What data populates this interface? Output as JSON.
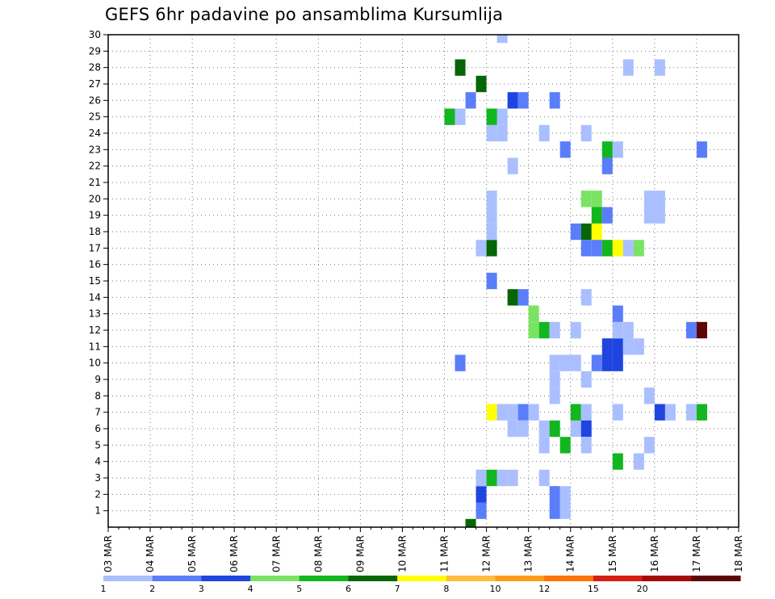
{
  "title": "GEFS 6hr padavine po ansamblima Kursumlija",
  "chart_data": {
    "type": "heatmap",
    "title": "GEFS 6hr padavine po ansamblima Kursumlija",
    "x_ticks": [
      "03 MAR",
      "04 MAR",
      "05 MAR",
      "06 MAR",
      "07 MAR",
      "08 MAR",
      "09 MAR",
      "10 MAR",
      "11 MAR",
      "12 MAR",
      "13 MAR",
      "14 MAR",
      "15 MAR",
      "16 MAR",
      "17 MAR",
      "18 MAR"
    ],
    "y_ticks": [
      "1",
      "2",
      "3",
      "4",
      "5",
      "6",
      "7",
      "8",
      "9",
      "10",
      "11",
      "12",
      "13",
      "14",
      "15",
      "16",
      "17",
      "18",
      "19",
      "20",
      "21",
      "22",
      "23",
      "24",
      "25",
      "26",
      "27",
      "28",
      "29",
      "30"
    ],
    "xlim": [
      "03 MAR 00Z",
      "18 MAR 00Z"
    ],
    "ylim": [
      0,
      30
    ],
    "x_step_hours": 6,
    "grid": true,
    "cells_format": "[x_step_index, ensemble_member, color_class]",
    "cells": [
      [
        34,
        0,
        6
      ],
      [
        35,
        1,
        2
      ],
      [
        35,
        2,
        3
      ],
      [
        35,
        3,
        1
      ],
      [
        35,
        17,
        1
      ],
      [
        36,
        17,
        6
      ],
      [
        36,
        18,
        1
      ],
      [
        36,
        19,
        1
      ],
      [
        36,
        7,
        7
      ],
      [
        37,
        7,
        1
      ],
      [
        38,
        7,
        1
      ],
      [
        39,
        7,
        2
      ],
      [
        40,
        7,
        1
      ],
      [
        38,
        6,
        1
      ],
      [
        39,
        6,
        1
      ],
      [
        35,
        3,
        1
      ],
      [
        36,
        3,
        5
      ],
      [
        37,
        3,
        1
      ],
      [
        38,
        3,
        1
      ],
      [
        41,
        3,
        1
      ],
      [
        41,
        5,
        1
      ],
      [
        41,
        6,
        1
      ],
      [
        42,
        6,
        5
      ],
      [
        42,
        2,
        2
      ],
      [
        43,
        2,
        1
      ],
      [
        42,
        1,
        2
      ],
      [
        43,
        1,
        1
      ],
      [
        33,
        10,
        2
      ],
      [
        36,
        15,
        2
      ],
      [
        38,
        14,
        6
      ],
      [
        39,
        14,
        2
      ],
      [
        40,
        12,
        4
      ],
      [
        40,
        13,
        4
      ],
      [
        41,
        12,
        5
      ],
      [
        42,
        12,
        1
      ],
      [
        42,
        8,
        1
      ],
      [
        42,
        9,
        1
      ],
      [
        42,
        10,
        1
      ],
      [
        43,
        5,
        5
      ],
      [
        44,
        6,
        1
      ],
      [
        44,
        7,
        5
      ],
      [
        45,
        7,
        1
      ],
      [
        45,
        6,
        3
      ],
      [
        45,
        5,
        1
      ],
      [
        44,
        10,
        1
      ],
      [
        45,
        9,
        1
      ],
      [
        46,
        10,
        2
      ],
      [
        47,
        10,
        3
      ],
      [
        48,
        10,
        3
      ],
      [
        47,
        11,
        3
      ],
      [
        48,
        11,
        3
      ],
      [
        48,
        12,
        1
      ],
      [
        49,
        12,
        1
      ],
      [
        48,
        13,
        2
      ],
      [
        49,
        11,
        1
      ],
      [
        50,
        11,
        1
      ],
      [
        45,
        14,
        1
      ],
      [
        44,
        18,
        2
      ],
      [
        45,
        18,
        6
      ],
      [
        46,
        18,
        7
      ],
      [
        46,
        19,
        5
      ],
      [
        47,
        19,
        2
      ],
      [
        45,
        17,
        2
      ],
      [
        46,
        17,
        2
      ],
      [
        47,
        17,
        5
      ],
      [
        48,
        17,
        7
      ],
      [
        49,
        17,
        1
      ],
      [
        50,
        17,
        4
      ],
      [
        46,
        20,
        4
      ],
      [
        45,
        20,
        4
      ],
      [
        47,
        22,
        2
      ],
      [
        47,
        23,
        5
      ],
      [
        48,
        23,
        1
      ],
      [
        43,
        23,
        2
      ],
      [
        45,
        24,
        1
      ],
      [
        44,
        12,
        1
      ],
      [
        43,
        10,
        1
      ],
      [
        48,
        4,
        5
      ],
      [
        50,
        4,
        1
      ],
      [
        51,
        5,
        1
      ],
      [
        48,
        7,
        1
      ],
      [
        52,
        7,
        3
      ],
      [
        53,
        7,
        1
      ],
      [
        55,
        7,
        1
      ],
      [
        56,
        7,
        5
      ],
      [
        51,
        8,
        1
      ],
      [
        51,
        20,
        1
      ],
      [
        52,
        20,
        1
      ],
      [
        51,
        19,
        1
      ],
      [
        52,
        19,
        1
      ],
      [
        55,
        12,
        2
      ],
      [
        56,
        12,
        13
      ],
      [
        56,
        23,
        2
      ],
      [
        41,
        24,
        1
      ],
      [
        36,
        24,
        1
      ],
      [
        37,
        24,
        1
      ],
      [
        37,
        25,
        1
      ],
      [
        36,
        25,
        5
      ],
      [
        33,
        25,
        1
      ],
      [
        32,
        25,
        5
      ],
      [
        34,
        26,
        2
      ],
      [
        38,
        26,
        3
      ],
      [
        39,
        26,
        2
      ],
      [
        42,
        26,
        2
      ],
      [
        35,
        27,
        6
      ],
      [
        33,
        28,
        6
      ],
      [
        37,
        30,
        1
      ],
      [
        49,
        28,
        1
      ],
      [
        52,
        28,
        1
      ],
      [
        38,
        22,
        1
      ],
      [
        36,
        20,
        1
      ]
    ],
    "colorbar": {
      "colors": [
        "#aabfff",
        "#5a7dfb",
        "#1f45e0",
        "#7be363",
        "#12b61f",
        "#066605",
        "#ffff00",
        "#ffbd3d",
        "#ff9b1b",
        "#ff7400",
        "#d61e12",
        "#a50a0a",
        "#5e0505"
      ],
      "labels": [
        "1",
        "2",
        "3",
        "4",
        "5",
        "6",
        "7",
        "8",
        "10",
        "12",
        "15",
        "20"
      ]
    }
  }
}
